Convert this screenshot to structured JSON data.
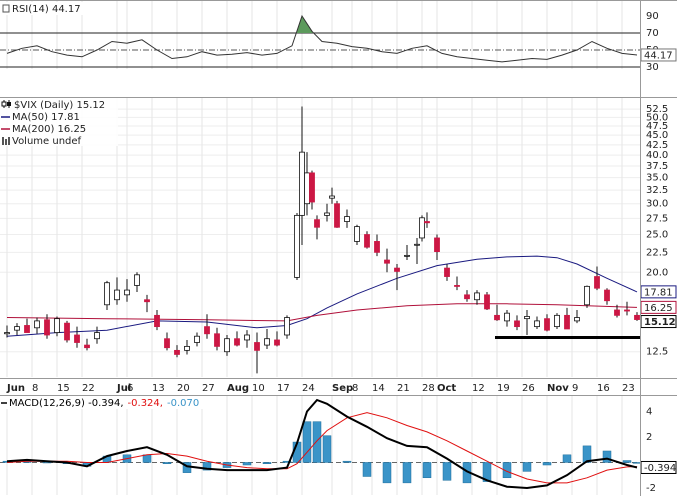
{
  "chart_data": [
    {
      "type": "line",
      "title": "RSI(14) 44.17",
      "color": "#333333",
      "overbought_fill": "#5c9a5c",
      "x": [
        0,
        3,
        6,
        9,
        12,
        15,
        18,
        21,
        24,
        27,
        30,
        33,
        36,
        39,
        42,
        45,
        48,
        51,
        54,
        57,
        59,
        61,
        63,
        66,
        69,
        72,
        75,
        78,
        81,
        84,
        87,
        90,
        93,
        96,
        99,
        102,
        105,
        108,
        111,
        114,
        117,
        120,
        123,
        126
      ],
      "values": [
        46,
        52,
        55,
        48,
        44,
        42,
        50,
        60,
        58,
        62,
        50,
        40,
        42,
        48,
        44,
        45,
        47,
        44,
        46,
        55,
        90,
        72,
        60,
        58,
        54,
        52,
        48,
        46,
        52,
        55,
        46,
        42,
        40,
        38,
        36,
        38,
        40,
        39,
        44,
        50,
        60,
        52,
        46,
        44.17
      ],
      "xlim": [
        -1.4,
        126.6
      ],
      "ylim": [
        26.5,
        108.8
      ],
      "yticks": [
        30,
        50,
        70,
        90
      ],
      "reference_lines": [
        70,
        30
      ],
      "midline": 50
    },
    {
      "type": "candlestick",
      "title": "$VIX (Daily) 15.12",
      "log_scale": true,
      "grid": true,
      "up_color": "#ffffff",
      "down_color": "#cc1744",
      "x": [
        0,
        2,
        4,
        6,
        8,
        10,
        12,
        14,
        16,
        18,
        20,
        22,
        24,
        26,
        28,
        30,
        32,
        34,
        36,
        38,
        40,
        42,
        44,
        46,
        48,
        50,
        52,
        54,
        56,
        58,
        59,
        60,
        61,
        62,
        64,
        65,
        66,
        68,
        70,
        72,
        74,
        76,
        78,
        80,
        82,
        83,
        84,
        86,
        88,
        90,
        92,
        94,
        96,
        98,
        100,
        102,
        104,
        106,
        108,
        110,
        112,
        114,
        116,
        118,
        120,
        122,
        124,
        126
      ],
      "open": [
        13.9,
        14.2,
        14.6,
        14.4,
        15.1,
        14.0,
        14.8,
        13.8,
        13.0,
        13.5,
        16.5,
        17.0,
        17.5,
        18.5,
        17.0,
        15.5,
        13.5,
        12.6,
        12.6,
        13.2,
        14.5,
        13.9,
        12.5,
        13.5,
        13.4,
        13.2,
        13.0,
        13.4,
        13.8,
        19.4,
        28.0,
        30.0,
        36.0,
        27.3,
        28.0,
        31.0,
        30.0,
        27.0,
        24.0,
        25.0,
        24.0,
        21.5,
        20.5,
        22.0,
        23.5,
        24.5,
        27.0,
        24.5,
        20.5,
        18.5,
        17.5,
        17.0,
        17.5,
        15.5,
        15.0,
        15.0,
        15.2,
        14.5,
        15.2,
        14.5,
        15.5,
        15.0,
        16.5,
        19.5,
        18.0,
        16.0,
        16.0,
        15.5
      ],
      "high": [
        14.6,
        14.8,
        15.2,
        15.3,
        15.6,
        15.4,
        15.0,
        14.5,
        13.5,
        14.5,
        19.0,
        19.4,
        19.2,
        20.0,
        17.5,
        16.0,
        14.0,
        13.0,
        13.4,
        14.0,
        15.6,
        14.4,
        13.8,
        14.1,
        14.2,
        14.0,
        14.3,
        14.1,
        15.5,
        28.4,
        53.3,
        40.7,
        36.5,
        28.0,
        30.0,
        33.0,
        30.5,
        29.0,
        26.5,
        25.5,
        25.0,
        23.0,
        21.0,
        23.5,
        24.5,
        28.0,
        28.5,
        25.0,
        21.0,
        19.5,
        18.0,
        18.0,
        17.8,
        16.5,
        16.0,
        15.5,
        16.0,
        15.4,
        15.6,
        15.7,
        16.2,
        16.0,
        18.5,
        20.7,
        18.2,
        16.5,
        16.8,
        15.8
      ],
      "low": [
        13.6,
        13.8,
        14.1,
        13.9,
        13.5,
        13.7,
        13.2,
        12.8,
        12.6,
        13.1,
        16.0,
        16.5,
        16.8,
        17.8,
        15.8,
        14.2,
        12.6,
        12.1,
        12.3,
        12.9,
        13.5,
        12.6,
        12.2,
        12.9,
        12.8,
        11.0,
        12.7,
        12.9,
        13.5,
        19.1,
        23.5,
        28.0,
        29.0,
        24.3,
        27.0,
        30.0,
        26.0,
        26.0,
        23.5,
        23.0,
        22.0,
        20.0,
        18.0,
        21.5,
        21.0,
        24.0,
        26.0,
        21.5,
        19.0,
        18.0,
        16.8,
        16.5,
        16.0,
        15.0,
        14.5,
        14.2,
        13.8,
        14.3,
        14.1,
        14.3,
        14.3,
        14.8,
        16.2,
        18.0,
        16.5,
        15.3,
        15.5,
        15.0
      ],
      "close": [
        14.0,
        14.5,
        14.0,
        15.0,
        13.8,
        15.2,
        13.4,
        13.2,
        12.8,
        14.0,
        18.8,
        18.0,
        18.0,
        19.7,
        16.8,
        14.5,
        12.8,
        12.3,
        12.9,
        13.7,
        13.9,
        12.9,
        13.5,
        13.0,
        13.8,
        12.6,
        13.5,
        13.0,
        15.3,
        28.0,
        40.7,
        36.0,
        30.3,
        26.1,
        28.4,
        31.4,
        26.1,
        27.8,
        26.2,
        23.2,
        22.5,
        21.1,
        20.1,
        22.1,
        23.6,
        27.6,
        26.8,
        22.6,
        19.5,
        18.4,
        17.1,
        17.7,
        16.1,
        15.1,
        15.7,
        14.5,
        15.4,
        15.0,
        14.2,
        15.5,
        14.3,
        15.3,
        18.4,
        18.2,
        16.9,
        15.5,
        15.9,
        15.12
      ],
      "series": [
        {
          "name": "MA(50) 17.81",
          "color": "#1a1a80",
          "x": [
            0,
            10,
            20,
            30,
            40,
            50,
            56,
            60,
            64,
            70,
            78,
            86,
            94,
            100,
            106,
            110,
            114,
            120,
            126
          ],
          "values": [
            13.7,
            14.0,
            14.2,
            15.0,
            14.9,
            14.4,
            14.6,
            15.2,
            16.2,
            17.6,
            19.3,
            20.8,
            21.6,
            21.9,
            22.0,
            21.8,
            21.0,
            19.3,
            17.81
          ]
        },
        {
          "name": "MA(200) 16.25",
          "color": "#b0103a",
          "x": [
            0,
            20,
            40,
            56,
            62,
            70,
            80,
            90,
            100,
            110,
            126
          ],
          "values": [
            15.3,
            15.2,
            15.1,
            15.0,
            15.5,
            16.0,
            16.4,
            16.6,
            16.6,
            16.5,
            16.25
          ]
        }
      ],
      "volume_label": "Volume undef",
      "support_line": {
        "value": 13.6,
        "x": [
          97.6,
          126.6
        ]
      },
      "xlim": [
        -1.4,
        126.6
      ],
      "ylim": [
        10.7,
        56.4
      ],
      "yticks": [
        12.5,
        {
          "value": 20,
          "label": "20.0"
        },
        22.5,
        {
          "value": 25,
          "label": "25.0"
        },
        27.5,
        {
          "value": 30,
          "label": "30.0"
        },
        32.5,
        {
          "value": 35,
          "label": "35.0"
        },
        37.5,
        {
          "value": 40,
          "label": "40.0"
        },
        42.5,
        {
          "value": 45,
          "label": "45.0"
        },
        47.5,
        {
          "value": 50,
          "label": "50.0"
        },
        52.5
      ],
      "xticks": [
        {
          "value": 0,
          "label": "Jun"
        },
        {
          "value": 5,
          "label": "8"
        },
        {
          "value": 10,
          "label": "15"
        },
        {
          "value": 15,
          "label": "22"
        },
        {
          "value": 22,
          "label": "Jul"
        },
        {
          "value": 24,
          "label": "6"
        },
        {
          "value": 29,
          "label": "13"
        },
        {
          "value": 34,
          "label": "20"
        },
        {
          "value": 39,
          "label": "27"
        },
        {
          "value": 44,
          "label": "Aug"
        },
        {
          "value": 49,
          "label": "10"
        },
        {
          "value": 54,
          "label": "17"
        },
        {
          "value": 59,
          "label": "24"
        },
        {
          "value": 65,
          "label": "Sep"
        },
        {
          "value": 69,
          "label": "8"
        },
        {
          "value": 73,
          "label": "14"
        },
        {
          "value": 78,
          "label": "21"
        },
        {
          "value": 83,
          "label": "28"
        },
        {
          "value": 86,
          "label": "Oct"
        },
        {
          "value": 93,
          "label": "12"
        },
        {
          "value": 98,
          "label": "19"
        },
        {
          "value": 103,
          "label": "26"
        },
        {
          "value": 108,
          "label": "Nov"
        },
        {
          "value": 113,
          "label": "9"
        },
        {
          "value": 118,
          "label": "16"
        },
        {
          "value": 123,
          "label": "23"
        }
      ]
    },
    {
      "type": "macd",
      "x": [
        0,
        4,
        8,
        12,
        16,
        20,
        24,
        28,
        32,
        36,
        40,
        44,
        48,
        52,
        56,
        58,
        60,
        62,
        64,
        68,
        72,
        76,
        80,
        84,
        88,
        92,
        96,
        100,
        104,
        108,
        112,
        116,
        120,
        124,
        126
      ],
      "series": [
        {
          "name": "MACD(12,26,9) -0.394,",
          "color": "#000000",
          "values": [
            0.1,
            0.2,
            0.1,
            0.0,
            -0.3,
            0.5,
            0.9,
            1.2,
            0.6,
            -0.3,
            -0.5,
            -0.6,
            -0.6,
            -0.6,
            -0.4,
            1.5,
            4.0,
            4.9,
            4.6,
            3.6,
            2.8,
            1.9,
            1.3,
            1.2,
            0.3,
            -0.7,
            -1.4,
            -1.9,
            -2.0,
            -1.8,
            -1.0,
            0.1,
            0.3,
            -0.2,
            -0.394
          ]
        },
        {
          "name": "-0.324,",
          "color": "#e01010",
          "values": [
            0.0,
            0.1,
            0.1,
            0.1,
            0.0,
            0.0,
            0.3,
            0.6,
            0.7,
            0.5,
            0.1,
            -0.2,
            -0.4,
            -0.5,
            -0.5,
            -0.1,
            0.8,
            1.7,
            2.5,
            3.5,
            3.9,
            3.5,
            2.9,
            2.4,
            1.7,
            0.9,
            0.1,
            -0.7,
            -1.3,
            -1.6,
            -1.6,
            -1.2,
            -0.6,
            -0.35,
            -0.324
          ]
        },
        {
          "name": "-0.070",
          "color": "#3a94c8",
          "values": [
            0.1,
            0.1,
            0.0,
            -0.1,
            -0.3,
            0.5,
            0.6,
            0.6,
            -0.1,
            -0.8,
            -0.6,
            -0.4,
            -0.2,
            -0.1,
            0.1,
            1.6,
            3.2,
            3.2,
            2.1,
            0.1,
            -1.1,
            -1.6,
            -1.6,
            -1.2,
            -1.4,
            -1.6,
            -1.5,
            -1.2,
            -0.7,
            -0.2,
            0.6,
            1.3,
            0.9,
            0.15,
            -0.07
          ]
        }
      ],
      "xlim": [
        -1.4,
        126.6
      ],
      "ylim": [
        -2.63,
        5.29
      ],
      "yticks": [
        -2,
        2,
        4
      ],
      "reference_lines": [
        0
      ]
    }
  ]
}
